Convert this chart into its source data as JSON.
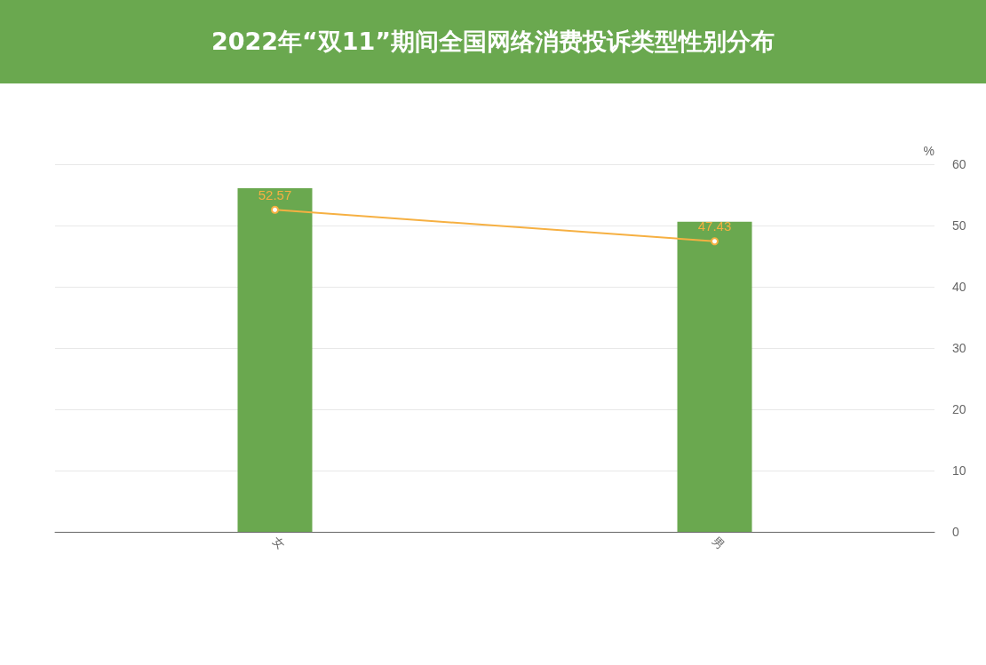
{
  "chart_data": {
    "type": "bar",
    "title": "2022年“双11”期间全国网络消费投诉类型性别分布",
    "ylabel": "%",
    "categories": [
      "女",
      "男"
    ],
    "series": [
      {
        "color": "#6aa84f",
        "values": [
          56.1,
          50.6
        ]
      },
      {
        "type": "line",
        "color": "#f6b042",
        "values": [
          52.57,
          47.43
        ],
        "data_labels": true,
        "marker": "circle"
      }
    ],
    "ylim": [
      0,
      60
    ],
    "yticks": [
      0,
      10,
      20,
      30,
      40,
      50,
      60
    ],
    "grid": "y"
  }
}
